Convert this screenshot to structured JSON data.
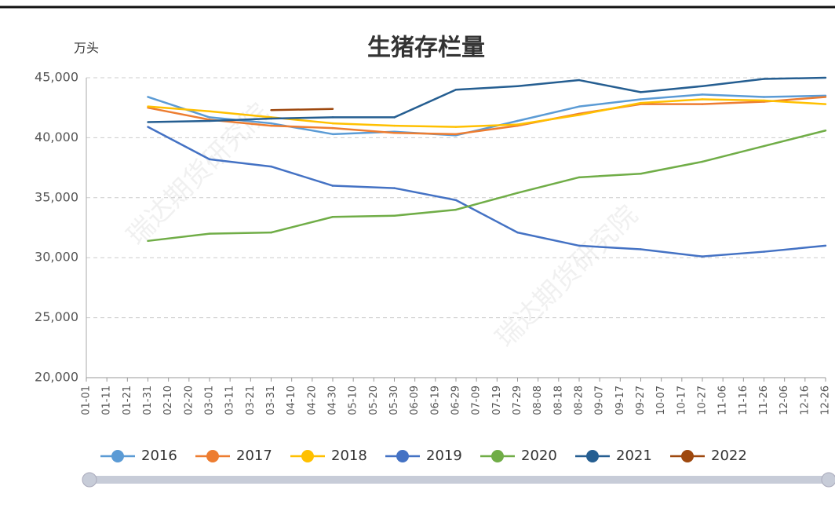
{
  "chart_data": {
    "type": "line",
    "title": "生猪存栏量",
    "y_label": "万头",
    "watermark": "瑞达期货研究院",
    "categories": [
      "01-01",
      "01-11",
      "01-21",
      "01-31",
      "02-10",
      "02-20",
      "03-01",
      "03-11",
      "03-21",
      "03-31",
      "04-10",
      "04-20",
      "04-30",
      "05-10",
      "05-20",
      "05-30",
      "06-09",
      "06-19",
      "06-29",
      "07-09",
      "07-19",
      "07-29",
      "08-08",
      "08-18",
      "08-28",
      "09-07",
      "09-17",
      "09-27",
      "10-07",
      "10-17",
      "10-27",
      "11-06",
      "11-16",
      "11-26",
      "12-06",
      "12-16",
      "12-26"
    ],
    "ylim": [
      20000,
      45000
    ],
    "yticks": [
      {
        "value": 20000,
        "label": "20,000"
      },
      {
        "value": 25000,
        "label": "25,000"
      },
      {
        "value": 30000,
        "label": "30,000"
      },
      {
        "value": 35000,
        "label": "35,000"
      },
      {
        "value": 40000,
        "label": "40,000"
      },
      {
        "value": 45000,
        "label": "45,000"
      }
    ],
    "grid": true,
    "legend": "bottom",
    "series": [
      {
        "name": "2016",
        "color": "#5b9bd5",
        "values": [
          null,
          null,
          null,
          43400,
          null,
          null,
          41700,
          null,
          null,
          41200,
          null,
          null,
          40300,
          null,
          null,
          40500,
          null,
          null,
          40200,
          null,
          null,
          41400,
          null,
          null,
          42600,
          null,
          null,
          43200,
          null,
          null,
          43600,
          null,
          null,
          43400,
          null,
          null,
          43500
        ]
      },
      {
        "name": "2017",
        "color": "#ed7d31",
        "values": [
          null,
          null,
          null,
          42500,
          null,
          null,
          41500,
          null,
          null,
          41000,
          null,
          null,
          40800,
          null,
          null,
          40400,
          null,
          null,
          40300,
          null,
          null,
          41000,
          null,
          null,
          42000,
          null,
          null,
          42800,
          null,
          null,
          42800,
          null,
          null,
          43000,
          null,
          null,
          43400
        ]
      },
      {
        "name": "2018",
        "color": "#ffc000",
        "values": [
          null,
          null,
          null,
          42600,
          null,
          null,
          42200,
          null,
          null,
          41700,
          null,
          null,
          41200,
          null,
          null,
          41000,
          null,
          null,
          40900,
          null,
          null,
          41100,
          null,
          null,
          41900,
          null,
          null,
          42900,
          null,
          null,
          43200,
          null,
          null,
          43100,
          null,
          null,
          42800
        ]
      },
      {
        "name": "2019",
        "color": "#4472c4",
        "values": [
          null,
          null,
          null,
          40900,
          null,
          null,
          38200,
          null,
          null,
          37600,
          null,
          null,
          36000,
          null,
          null,
          35800,
          null,
          null,
          34800,
          null,
          null,
          32100,
          null,
          null,
          31000,
          null,
          null,
          30700,
          null,
          null,
          30100,
          null,
          null,
          30500,
          null,
          null,
          31000
        ]
      },
      {
        "name": "2020",
        "color": "#70ad47",
        "values": [
          null,
          null,
          null,
          31400,
          null,
          null,
          32000,
          null,
          null,
          32100,
          null,
          null,
          33400,
          null,
          null,
          33500,
          null,
          null,
          34000,
          null,
          null,
          35400,
          null,
          null,
          36700,
          null,
          null,
          37000,
          null,
          null,
          38000,
          null,
          null,
          39300,
          null,
          null,
          40600
        ]
      },
      {
        "name": "2021",
        "color": "#255e91",
        "values": [
          null,
          null,
          null,
          41300,
          null,
          null,
          41400,
          null,
          null,
          41600,
          null,
          null,
          41700,
          null,
          null,
          41700,
          null,
          null,
          44000,
          null,
          null,
          44300,
          null,
          null,
          44800,
          null,
          null,
          43800,
          null,
          null,
          44300,
          null,
          null,
          44900,
          null,
          null,
          45000
        ]
      },
      {
        "name": "2022",
        "color": "#9e480e",
        "values": [
          null,
          null,
          null,
          null,
          null,
          null,
          null,
          null,
          null,
          42300,
          null,
          null,
          42400,
          null,
          null,
          null,
          null,
          null,
          null,
          null,
          null,
          null,
          null,
          null,
          null,
          null,
          null,
          null,
          null,
          null,
          null,
          null,
          null,
          null,
          null,
          null,
          null
        ]
      }
    ]
  }
}
